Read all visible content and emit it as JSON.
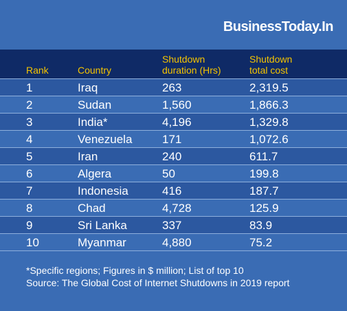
{
  "brand": "BusinessToday.In",
  "headers": {
    "rank": "Rank",
    "country": "Country",
    "duration_line1": "Shutdown",
    "duration_line2": "duration (Hrs)",
    "cost_line1": "Shutdown",
    "cost_line2": "total cost"
  },
  "rows": [
    {
      "rank": "1",
      "country": "Iraq",
      "duration": "263",
      "cost": "2,319.5"
    },
    {
      "rank": "2",
      "country": "Sudan",
      "duration": "1,560",
      "cost": "1,866.3"
    },
    {
      "rank": "3",
      "country": "India*",
      "duration": "4,196",
      "cost": "1,329.8"
    },
    {
      "rank": "4",
      "country": "Venezuela",
      "duration": "171",
      "cost": "1,072.6"
    },
    {
      "rank": "5",
      "country": "Iran",
      "duration": "240",
      "cost": "611.7"
    },
    {
      "rank": "6",
      "country": "Algera",
      "duration": "50",
      "cost": "199.8"
    },
    {
      "rank": "7",
      "country": "Indonesia",
      "duration": "416",
      "cost": "187.7"
    },
    {
      "rank": "8",
      "country": "Chad",
      "duration": "4,728",
      "cost": "125.9"
    },
    {
      "rank": "9",
      "country": "Sri Lanka",
      "duration": "337",
      "cost": "83.9"
    },
    {
      "rank": "10",
      "country": "Myanmar",
      "duration": "4,880",
      "cost": "75.2"
    }
  ],
  "footnote": {
    "line1": "*Specific regions; Figures in $ million; List of top 10",
    "line2": "Source: The Global Cost of Internet Shutdowns in 2019 report"
  },
  "colors": {
    "background": "#3a6cb4",
    "header_bg": "#0f2a66",
    "header_text": "#f5c400",
    "stripe": "#2c58a0"
  }
}
